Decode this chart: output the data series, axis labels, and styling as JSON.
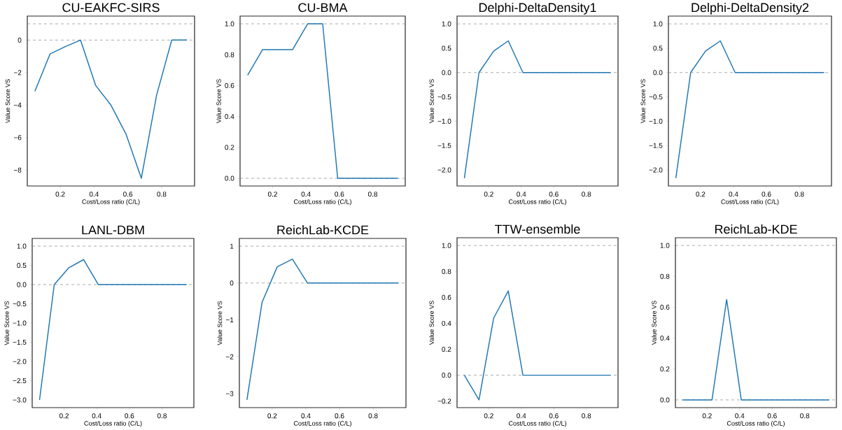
{
  "chart_data": [
    {
      "type": "line",
      "title": "CU-EAKFC-SIRS",
      "xlabel": "Cost/Loss ratio (C/L)",
      "ylabel": "Value Score VS",
      "color": "#1f77b4",
      "x": [
        0.05,
        0.14,
        0.23,
        0.32,
        0.41,
        0.5,
        0.59,
        0.68,
        0.77,
        0.86,
        0.95
      ],
      "values": [
        -3.15,
        -0.85,
        -0.4,
        0,
        -2.8,
        -4.0,
        -5.8,
        -8.5,
        -3.4,
        0,
        0
      ],
      "xlim": [
        0.005,
        0.995
      ],
      "ylim": [
        -8.975,
        1.475
      ],
      "xticks": [
        0.2,
        0.4,
        0.6,
        0.8
      ],
      "yticks": [
        {
          "value": -8,
          "label": "−8"
        },
        {
          "value": -6,
          "label": "−6"
        },
        {
          "value": -4,
          "label": "−4"
        },
        {
          "value": -2,
          "label": "−2"
        },
        {
          "value": 0,
          "label": "0"
        }
      ],
      "ref_lines": [
        {
          "axis": "y",
          "value": 1,
          "color": "#808080",
          "line_style": "dashed"
        },
        {
          "axis": "y",
          "value": 0,
          "color": "#808080",
          "line_style": "dashed"
        }
      ]
    },
    {
      "type": "line",
      "title": "CU-BMA",
      "xlabel": "Cost/Loss ratio (C/L)",
      "ylabel": "Value Score VS",
      "color": "#1f77b4",
      "x": [
        0.05,
        0.14,
        0.23,
        0.32,
        0.41,
        0.5,
        0.59,
        0.68,
        0.77,
        0.86,
        0.95
      ],
      "values": [
        0.667,
        0.833,
        0.833,
        0.833,
        1,
        1,
        0,
        0,
        0,
        0,
        0
      ],
      "xlim": [
        0.005,
        0.995
      ],
      "ylim": [
        -0.05,
        1.05
      ],
      "xticks": [
        0.2,
        0.4,
        0.6,
        0.8
      ],
      "yticks": [
        {
          "value": 0,
          "label": "0.0"
        },
        0.2,
        0.4,
        0.6,
        0.8,
        {
          "value": 1,
          "label": "1.0"
        }
      ],
      "ref_lines": [
        {
          "axis": "y",
          "value": 1,
          "color": "#808080",
          "line_style": "dashed"
        },
        {
          "axis": "y",
          "value": 0,
          "color": "#808080",
          "line_style": "dashed"
        }
      ]
    },
    {
      "type": "line",
      "title": "Delphi-DeltaDensity1",
      "xlabel": "Cost/Loss ratio (C/L)",
      "ylabel": "Value Score VS",
      "color": "#1f77b4",
      "x": [
        0.05,
        0.14,
        0.23,
        0.32,
        0.41,
        0.5,
        0.59,
        0.68,
        0.77,
        0.86,
        0.95
      ],
      "values": [
        -2.17,
        0,
        0.44,
        0.65,
        0,
        0,
        0,
        0,
        0,
        0,
        0
      ],
      "xlim": [
        0.005,
        0.995
      ],
      "ylim": [
        -2.33,
        1.16
      ],
      "xticks": [
        0.2,
        0.4,
        0.6,
        0.8
      ],
      "yticks": [
        {
          "value": -2,
          "label": "−2.0"
        },
        {
          "value": -1.5,
          "label": "−1.5"
        },
        {
          "value": -1,
          "label": "−1.0"
        },
        {
          "value": -0.5,
          "label": "−0.5"
        },
        {
          "value": 0,
          "label": "0.0"
        },
        0.5,
        {
          "value": 1,
          "label": "1.0"
        }
      ],
      "ref_lines": [
        {
          "axis": "y",
          "value": 1,
          "color": "#808080",
          "line_style": "dashed"
        },
        {
          "axis": "y",
          "value": 0,
          "color": "#808080",
          "line_style": "dashed"
        }
      ]
    },
    {
      "type": "line",
      "title": "Delphi-DeltaDensity2",
      "xlabel": "Cost/Loss ratio (C/L)",
      "ylabel": "Value Score VS",
      "color": "#1f77b4",
      "x": [
        0.05,
        0.14,
        0.23,
        0.32,
        0.41,
        0.5,
        0.59,
        0.68,
        0.77,
        0.86,
        0.95
      ],
      "values": [
        -2.17,
        0,
        0.44,
        0.65,
        0,
        0,
        0,
        0,
        0,
        0,
        0
      ],
      "xlim": [
        0.005,
        0.995
      ],
      "ylim": [
        -2.33,
        1.16
      ],
      "xticks": [
        0.2,
        0.4,
        0.6,
        0.8
      ],
      "yticks": [
        {
          "value": -2,
          "label": "−2.0"
        },
        {
          "value": -1.5,
          "label": "−1.5"
        },
        {
          "value": -1,
          "label": "−1.0"
        },
        {
          "value": -0.5,
          "label": "−0.5"
        },
        {
          "value": 0,
          "label": "0.0"
        },
        0.5,
        {
          "value": 1,
          "label": "1.0"
        }
      ],
      "ref_lines": [
        {
          "axis": "y",
          "value": 1,
          "color": "#808080",
          "line_style": "dashed"
        },
        {
          "axis": "y",
          "value": 0,
          "color": "#808080",
          "line_style": "dashed"
        }
      ]
    },
    {
      "type": "line",
      "title": "LANL-DBM",
      "xlabel": "Cost/Loss ratio (C/L)",
      "ylabel": "Value Score VS",
      "color": "#1f77b4",
      "x": [
        0.05,
        0.14,
        0.23,
        0.32,
        0.41,
        0.5,
        0.59,
        0.68,
        0.77,
        0.86,
        0.95
      ],
      "values": [
        -3.0,
        0,
        0.44,
        0.65,
        0,
        0,
        0,
        0,
        0,
        0,
        0
      ],
      "xlim": [
        0.005,
        0.995
      ],
      "ylim": [
        -3.2,
        1.2
      ],
      "xticks": [
        0.2,
        0.4,
        0.6,
        0.8
      ],
      "yticks": [
        {
          "value": -3,
          "label": "−3.0"
        },
        {
          "value": -2.5,
          "label": "−2.5"
        },
        {
          "value": -2,
          "label": "−2.0"
        },
        {
          "value": -1.5,
          "label": "−1.5"
        },
        {
          "value": -1,
          "label": "−1.0"
        },
        {
          "value": -0.5,
          "label": "−0.5"
        },
        {
          "value": 0,
          "label": "0.0"
        },
        0.5,
        {
          "value": 1,
          "label": "1.0"
        }
      ],
      "ref_lines": [
        {
          "axis": "y",
          "value": 1,
          "color": "#808080",
          "line_style": "dashed"
        },
        {
          "axis": "y",
          "value": 0,
          "color": "#808080",
          "line_style": "dashed"
        }
      ]
    },
    {
      "type": "line",
      "title": "ReichLab-KCDE",
      "xlabel": "Cost/Loss ratio (C/L)",
      "ylabel": "Value Score VS",
      "color": "#1f77b4",
      "x": [
        0.05,
        0.14,
        0.23,
        0.32,
        0.41,
        0.5,
        0.59,
        0.68,
        0.77,
        0.86,
        0.95
      ],
      "values": [
        -3.17,
        -0.52,
        0.44,
        0.65,
        0,
        0,
        0,
        0,
        0,
        0,
        0
      ],
      "xlim": [
        0.005,
        0.995
      ],
      "ylim": [
        -3.38,
        1.21
      ],
      "xticks": [
        0.2,
        0.4,
        0.6,
        0.8
      ],
      "yticks": [
        {
          "value": -3,
          "label": "−3"
        },
        {
          "value": -2,
          "label": "−2"
        },
        {
          "value": -1,
          "label": "−1"
        },
        0,
        1
      ],
      "ref_lines": [
        {
          "axis": "y",
          "value": 1,
          "color": "#808080",
          "line_style": "dashed"
        },
        {
          "axis": "y",
          "value": 0,
          "color": "#808080",
          "line_style": "dashed"
        }
      ]
    },
    {
      "type": "line",
      "title": "TTW-ensemble",
      "xlabel": "Cost/Loss ratio (C/L)",
      "ylabel": "Value Score VS",
      "color": "#1f77b4",
      "x": [
        0.05,
        0.14,
        0.23,
        0.32,
        0.41,
        0.5,
        0.59,
        0.68,
        0.77,
        0.86,
        0.95
      ],
      "values": [
        0,
        -0.19,
        0.44,
        0.65,
        0,
        0,
        0,
        0,
        0,
        0,
        0
      ],
      "xlim": [
        0.005,
        0.995
      ],
      "ylim": [
        -0.25,
        1.06
      ],
      "xticks": [
        0.2,
        0.4,
        0.6,
        0.8
      ],
      "yticks": [
        {
          "value": -0.2,
          "label": "−0.2"
        },
        {
          "value": 0,
          "label": "0.0"
        },
        0.2,
        0.4,
        0.6,
        0.8,
        {
          "value": 1,
          "label": "1.0"
        }
      ],
      "ref_lines": [
        {
          "axis": "y",
          "value": 1,
          "color": "#808080",
          "line_style": "dashed"
        },
        {
          "axis": "y",
          "value": 0,
          "color": "#808080",
          "line_style": "dashed"
        }
      ]
    },
    {
      "type": "line",
      "title": "ReichLab-KDE",
      "xlabel": "Cost/Loss ratio (C/L)",
      "ylabel": "Value Score VS",
      "color": "#1f77b4",
      "x": [
        0.05,
        0.14,
        0.23,
        0.32,
        0.41,
        0.5,
        0.59,
        0.68,
        0.77,
        0.86,
        0.95
      ],
      "values": [
        0,
        0,
        0,
        0.65,
        0,
        0,
        0,
        0,
        0,
        0,
        0
      ],
      "xlim": [
        0.005,
        0.995
      ],
      "ylim": [
        -0.05,
        1.05
      ],
      "xticks": [
        0.2,
        0.4,
        0.6,
        0.8
      ],
      "yticks": [
        {
          "value": 0,
          "label": "0.0"
        },
        0.2,
        0.4,
        0.6,
        0.8,
        {
          "value": 1,
          "label": "1.0"
        }
      ],
      "ref_lines": [
        {
          "axis": "y",
          "value": 1,
          "color": "#808080",
          "line_style": "dashed"
        },
        {
          "axis": "y",
          "value": 0,
          "color": "#808080",
          "line_style": "dashed"
        }
      ]
    }
  ]
}
